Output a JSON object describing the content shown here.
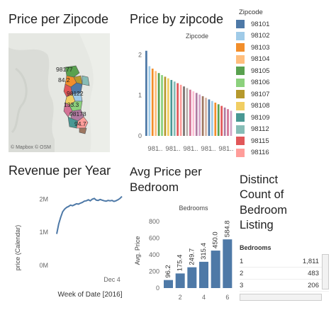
{
  "titles": {
    "map": "Price per Zipcode",
    "bar_zip": "Price by zipcode",
    "revenue": "Revenue per Year",
    "avg_bed": "Avg Price per\nBedroom",
    "distinct": "Distinct\nCount of\nBedroom\nListing"
  },
  "map": {
    "labels": [
      "98177",
      "84.2",
      "98122",
      "133.3",
      "98178",
      "94.7"
    ],
    "credit": "© Mapbox © OSM"
  },
  "legend": {
    "title": "Zipcode",
    "items": [
      {
        "label": "98101",
        "color": "#4e79a7"
      },
      {
        "label": "98102",
        "color": "#a0cbe8"
      },
      {
        "label": "98103",
        "color": "#f28e2b"
      },
      {
        "label": "98104",
        "color": "#ffbe7d"
      },
      {
        "label": "98105",
        "color": "#59a14f"
      },
      {
        "label": "98106",
        "color": "#8cd17d"
      },
      {
        "label": "98107",
        "color": "#b6992d"
      },
      {
        "label": "98108",
        "color": "#f1ce63"
      },
      {
        "label": "98109",
        "color": "#499894"
      },
      {
        "label": "98112",
        "color": "#86bcb6"
      },
      {
        "label": "98115",
        "color": "#e15759"
      },
      {
        "label": "98116",
        "color": "#ff9d9a"
      }
    ]
  },
  "chart_data": [
    {
      "type": "bar",
      "header": "Zipcode",
      "yticks": [
        "2",
        "1",
        "0"
      ],
      "ylim": [
        0,
        2.2
      ],
      "xticklabels": [
        "981..",
        "981..",
        "981..",
        "981..",
        "981.."
      ],
      "values": [
        2.1,
        1.72,
        1.66,
        1.6,
        1.55,
        1.5,
        1.46,
        1.42,
        1.38,
        1.34,
        1.3,
        1.26,
        1.22,
        1.18,
        1.14,
        1.1,
        1.06,
        1.02,
        0.98,
        0.94,
        0.9,
        0.86,
        0.82,
        0.78,
        0.74,
        0.7,
        0.66,
        0.62
      ],
      "colors": [
        "#4e79a7",
        "#a0cbe8",
        "#f28e2b",
        "#ffbe7d",
        "#59a14f",
        "#8cd17d",
        "#b6992d",
        "#f1ce63",
        "#499894",
        "#86bcb6",
        "#e15759",
        "#ff9d9a",
        "#79706e",
        "#bab0ac",
        "#d37295",
        "#fabfd2",
        "#b07aa1",
        "#d4a6c8",
        "#9d7660",
        "#d7b5a6",
        "#4e79a7",
        "#a0cbe8",
        "#f28e2b",
        "#59a14f",
        "#e15759",
        "#b07aa1",
        "#d37295",
        "#d4a6c8"
      ]
    },
    {
      "type": "line",
      "ylabel": "price (Calendar)",
      "xlabel": "Week of Date [2016]",
      "yticks": [
        "2M",
        "1M",
        "0M"
      ],
      "ylim": [
        0,
        2.2
      ],
      "xtick": "Dec 4",
      "values": [
        0.95,
        1.25,
        1.45,
        1.62,
        1.7,
        1.75,
        1.78,
        1.82,
        1.8,
        1.83,
        1.86,
        1.85,
        1.88,
        1.9,
        1.94,
        1.95,
        1.98,
        1.95,
        2.0,
        2.02,
        1.97,
        1.96,
        1.99,
        1.97,
        1.95,
        1.94,
        1.96,
        1.95,
        1.96,
        1.93,
        1.95,
        1.98,
        2.02,
        2.08
      ],
      "color": "#4e79a7"
    },
    {
      "type": "bar",
      "header": "Bedrooms",
      "ylabel": "Avg. Price",
      "yticks": [
        "800",
        "600",
        "400",
        "200",
        "0"
      ],
      "ylim": [
        0,
        850
      ],
      "categories": [
        "1",
        "2",
        "3",
        "4",
        "5",
        "6"
      ],
      "xticklabels": [
        "2",
        "4",
        "6"
      ],
      "values": [
        96.2,
        175.4,
        249.7,
        315.4,
        450.0,
        584.8
      ],
      "labels": [
        "96.2",
        "175.4",
        "249.7",
        "315.4",
        "450.0",
        "584.8"
      ],
      "color": "#4e79a7"
    }
  ],
  "bed_table": {
    "header": "Bedrooms",
    "rows": [
      {
        "k": "1",
        "v": "1,811"
      },
      {
        "k": "2",
        "v": "483"
      },
      {
        "k": "3",
        "v": "206"
      }
    ]
  }
}
